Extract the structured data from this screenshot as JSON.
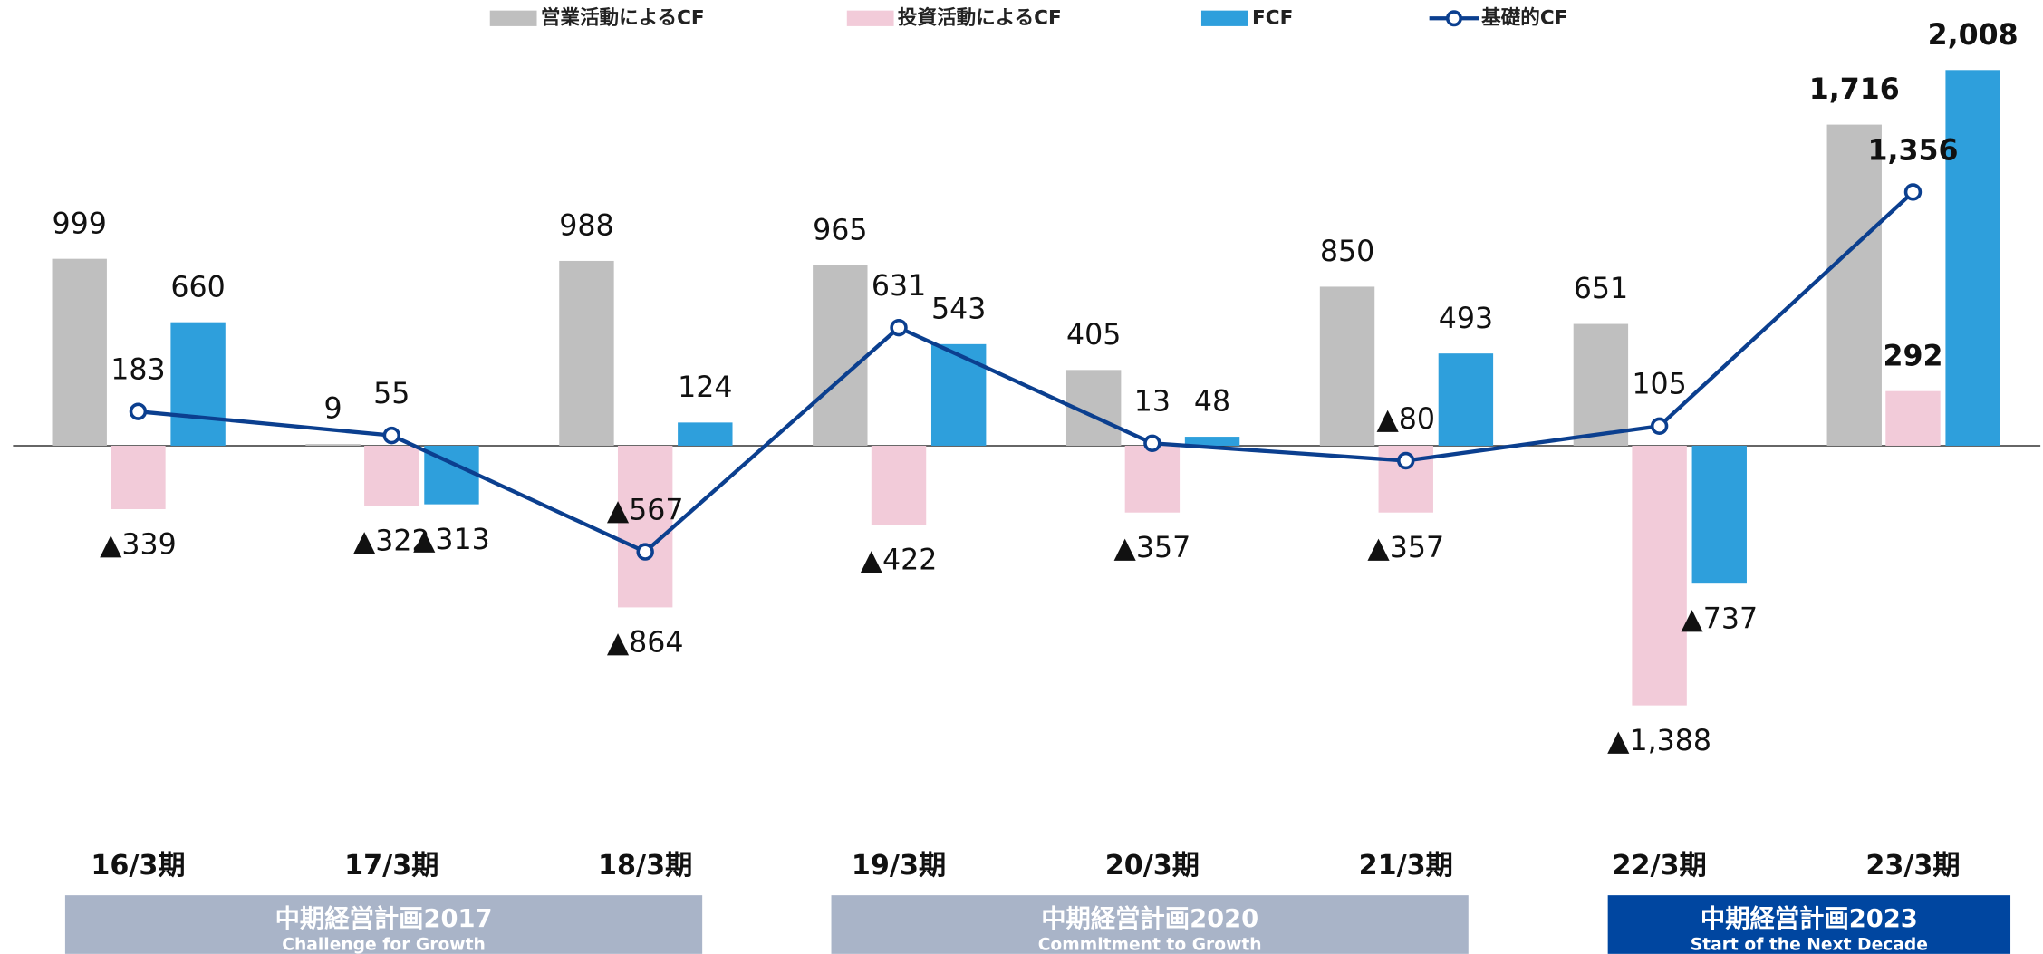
{
  "chart_data": {
    "type": "bar",
    "categories": [
      "16/3期",
      "17/3期",
      "18/3期",
      "19/3期",
      "20/3期",
      "21/3期",
      "22/3期",
      "23/3期"
    ],
    "series": [
      {
        "name": "営業活動によるCF",
        "color": "#bfbfbf",
        "values": [
          999,
          9,
          988,
          965,
          405,
          850,
          651,
          1716
        ],
        "value_labels": [
          "999",
          "9",
          "988",
          "965",
          "405",
          "850",
          "651",
          "1,716"
        ]
      },
      {
        "name": "投資活動によるCF",
        "color": "#f2cbd9",
        "values": [
          -339,
          -322,
          -864,
          -422,
          -357,
          -357,
          -1388,
          292
        ],
        "value_labels": [
          "▲339",
          "▲322",
          "▲864",
          "▲422",
          "▲357",
          "▲357",
          "▲1,388",
          "292"
        ]
      },
      {
        "name": "FCF",
        "color": "#2e9fdc",
        "values": [
          660,
          -313,
          124,
          543,
          48,
          493,
          -737,
          2008
        ],
        "value_labels": [
          "660",
          "▲313",
          "124",
          "543",
          "48",
          "493",
          "▲737",
          "2,008"
        ]
      },
      {
        "name": "基礎的CF",
        "type": "line",
        "color": "#0b3f8f",
        "values": [
          183,
          55,
          -567,
          631,
          13,
          -80,
          105,
          1356
        ],
        "value_labels": [
          "183",
          "55",
          "▲567",
          "631",
          "13",
          "▲80",
          "105",
          "1,356"
        ]
      }
    ],
    "plans": [
      {
        "title": "中期経営計画2017",
        "subtitle": "Challenge for Growth",
        "color": "#a9b4c8"
      },
      {
        "title": "中期経営計画2020",
        "subtitle": "Commitment to Growth",
        "color": "#a9b4c8"
      },
      {
        "title": "中期経営計画2023",
        "subtitle": "Start of the Next Decade",
        "color": "#0046a0"
      }
    ]
  }
}
